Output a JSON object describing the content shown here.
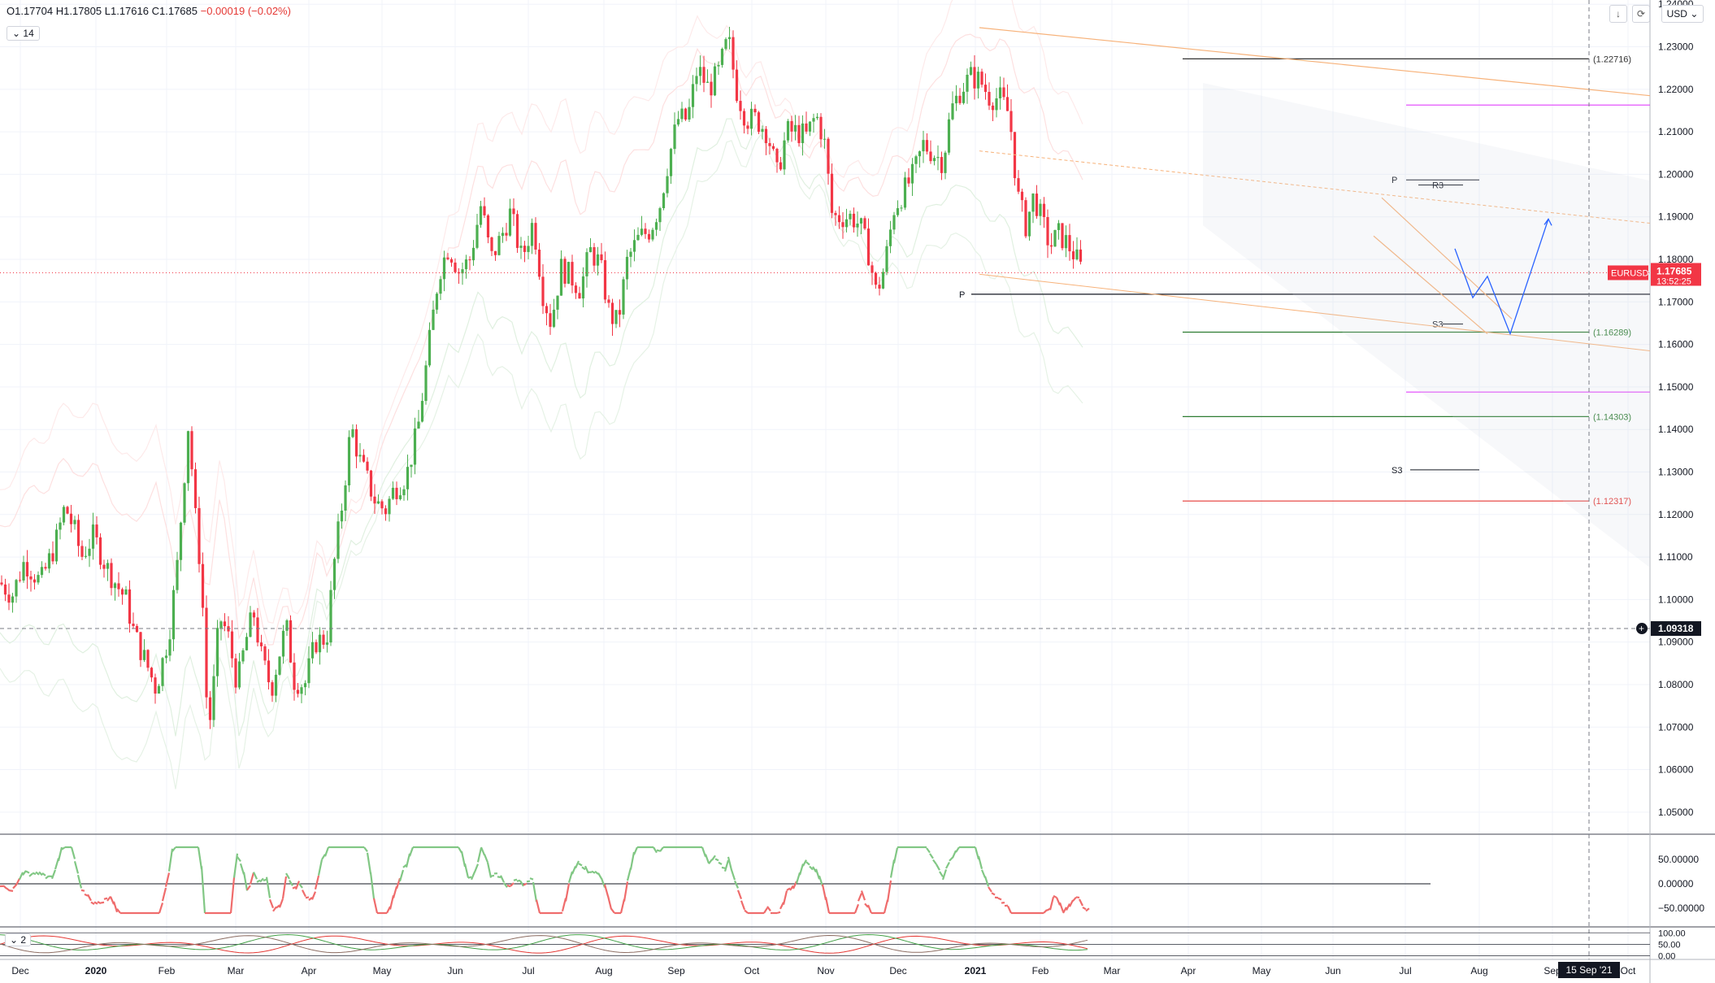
{
  "header": {
    "open": "O1.17704",
    "high": "H1.17805",
    "low": "L1.17616",
    "close": "C1.17685",
    "change": "−0.00019 (−0.02%)",
    "indicator_toggle": "14",
    "sub_toggle": "2",
    "currency": "USD"
  },
  "colors": {
    "up": "#4caf50",
    "down": "#f23645",
    "price_badge": "#f23645",
    "crosshair_badge": "#131722",
    "magenta": "#e040fb",
    "orange": "#f7b27a",
    "arrow": "#2962ff"
  },
  "chart_data": {
    "type": "candlestick",
    "symbol": "EURUSD",
    "last_price": "1.17685",
    "countdown": "13:52:25",
    "crosshair_price": "1.09318",
    "crosshair_date": "15 Sep '21",
    "y_ticks": [
      "1.24000",
      "1.23000",
      "1.22000",
      "1.21000",
      "1.20000",
      "1.19000",
      "1.18000",
      "1.17000",
      "1.16000",
      "1.15000",
      "1.14000",
      "1.13000",
      "1.12000",
      "1.11000",
      "1.10000",
      "1.09000",
      "1.08000",
      "1.07000",
      "1.06000",
      "1.05000"
    ],
    "ylim": [
      1.045,
      1.241
    ],
    "x_ticks": [
      "Dec",
      "2020",
      "Feb",
      "Mar",
      "Apr",
      "May",
      "Jun",
      "Jul",
      "Aug",
      "Sep",
      "Oct",
      "Nov",
      "Dec",
      "2021",
      "Feb",
      "Mar",
      "Apr",
      "May",
      "Jun",
      "Jul",
      "Aug",
      "Sep",
      "Oct"
    ],
    "path": [
      [
        0,
        1.104
      ],
      [
        15,
        1.101
      ],
      [
        30,
        1.109
      ],
      [
        50,
        1.104
      ],
      [
        68,
        1.113
      ],
      [
        80,
        1.122
      ],
      [
        92,
        1.116
      ],
      [
        100,
        1.11
      ],
      [
        115,
        1.115
      ],
      [
        130,
        1.108
      ],
      [
        145,
        1.103
      ],
      [
        155,
        1.1
      ],
      [
        165,
        1.092
      ],
      [
        180,
        1.085
      ],
      [
        192,
        1.079
      ],
      [
        208,
        1.092
      ],
      [
        218,
        1.108
      ],
      [
        232,
        1.142
      ],
      [
        240,
        1.12
      ],
      [
        248,
        1.105
      ],
      [
        256,
        1.068
      ],
      [
        262,
        1.078
      ],
      [
        270,
        1.096
      ],
      [
        280,
        1.092
      ],
      [
        292,
        1.08
      ],
      [
        302,
        1.09
      ],
      [
        312,
        1.097
      ],
      [
        322,
        1.086
      ],
      [
        334,
        1.079
      ],
      [
        342,
        1.086
      ],
      [
        352,
        1.094
      ],
      [
        362,
        1.081
      ],
      [
        375,
        1.08
      ],
      [
        388,
        1.09
      ],
      [
        402,
        1.091
      ],
      [
        412,
        1.11
      ],
      [
        422,
        1.124
      ],
      [
        432,
        1.141
      ],
      [
        442,
        1.133
      ],
      [
        452,
        1.128
      ],
      [
        462,
        1.123
      ],
      [
        474,
        1.121
      ],
      [
        485,
        1.126
      ],
      [
        500,
        1.129
      ],
      [
        514,
        1.14
      ],
      [
        528,
        1.16
      ],
      [
        540,
        1.177
      ],
      [
        552,
        1.183
      ],
      [
        565,
        1.177
      ],
      [
        578,
        1.18
      ],
      [
        592,
        1.193
      ],
      [
        604,
        1.18
      ],
      [
        616,
        1.185
      ],
      [
        628,
        1.191
      ],
      [
        642,
        1.18
      ],
      [
        656,
        1.189
      ],
      [
        668,
        1.172
      ],
      [
        678,
        1.165
      ],
      [
        690,
        1.178
      ],
      [
        702,
        1.176
      ],
      [
        714,
        1.173
      ],
      [
        726,
        1.182
      ],
      [
        738,
        1.179
      ],
      [
        750,
        1.167
      ],
      [
        760,
        1.165
      ],
      [
        772,
        1.18
      ],
      [
        786,
        1.185
      ],
      [
        800,
        1.187
      ],
      [
        812,
        1.193
      ],
      [
        822,
        1.203
      ],
      [
        834,
        1.213
      ],
      [
        846,
        1.213
      ],
      [
        858,
        1.225
      ],
      [
        872,
        1.22
      ],
      [
        884,
        1.224
      ],
      [
        896,
        1.232
      ],
      [
        906,
        1.22
      ],
      [
        918,
        1.213
      ],
      [
        930,
        1.213
      ],
      [
        944,
        1.21
      ],
      [
        956,
        1.2
      ],
      [
        968,
        1.21
      ],
      [
        980,
        1.21
      ],
      [
        992,
        1.209
      ],
      [
        1004,
        1.214
      ],
      [
        1014,
        1.208
      ],
      [
        1024,
        1.19
      ],
      [
        1036,
        1.19
      ],
      [
        1048,
        1.19
      ],
      [
        1058,
        1.188
      ],
      [
        1068,
        1.182
      ],
      [
        1078,
        1.172
      ],
      [
        1088,
        1.178
      ],
      [
        1100,
        1.192
      ],
      [
        1112,
        1.196
      ],
      [
        1124,
        1.2
      ],
      [
        1136,
        1.207
      ],
      [
        1148,
        1.205
      ],
      [
        1160,
        1.203
      ],
      [
        1170,
        1.215
      ],
      [
        1182,
        1.22
      ],
      [
        1194,
        1.223
      ],
      [
        1206,
        1.222
      ],
      [
        1218,
        1.218
      ],
      [
        1230,
        1.218
      ],
      [
        1242,
        1.214
      ],
      [
        1252,
        1.195
      ],
      [
        1262,
        1.188
      ],
      [
        1272,
        1.195
      ],
      [
        1282,
        1.189
      ],
      [
        1292,
        1.183
      ],
      [
        1302,
        1.186
      ],
      [
        1312,
        1.184
      ],
      [
        1322,
        1.181
      ],
      [
        1332,
        1.177
      ]
    ],
    "h_levels": [
      {
        "price": 1.22716,
        "label": "(1.22716)",
        "color": "#333333"
      },
      {
        "price": 1.16289,
        "label": "(1.16289)",
        "color": "#2e7d32"
      },
      {
        "price": 1.14303,
        "label": "(1.14303)",
        "color": "#2e7d32"
      },
      {
        "price": 1.12317,
        "label": "(1.12317)",
        "color": "#e53935"
      }
    ],
    "pivot_labels": [
      {
        "text": "P",
        "x": 879,
        "price": 1.1718
      },
      {
        "text": "P",
        "x": 1275,
        "price": 1.1987
      },
      {
        "text": "R3",
        "x": 1314,
        "price": 1.1975
      },
      {
        "text": "S3",
        "x": 1314,
        "price": 1.1648
      },
      {
        "text": "S3",
        "x": 1277,
        "price": 1.1305
      }
    ],
    "indicator1": {
      "ticks": [
        "50.00000",
        "0.00000",
        "−50.00000"
      ],
      "range": [
        -80,
        95
      ]
    },
    "indicator2": {
      "ticks": [
        "100.00",
        "50.00",
        "0.00"
      ],
      "range": [
        -5,
        115
      ]
    }
  }
}
